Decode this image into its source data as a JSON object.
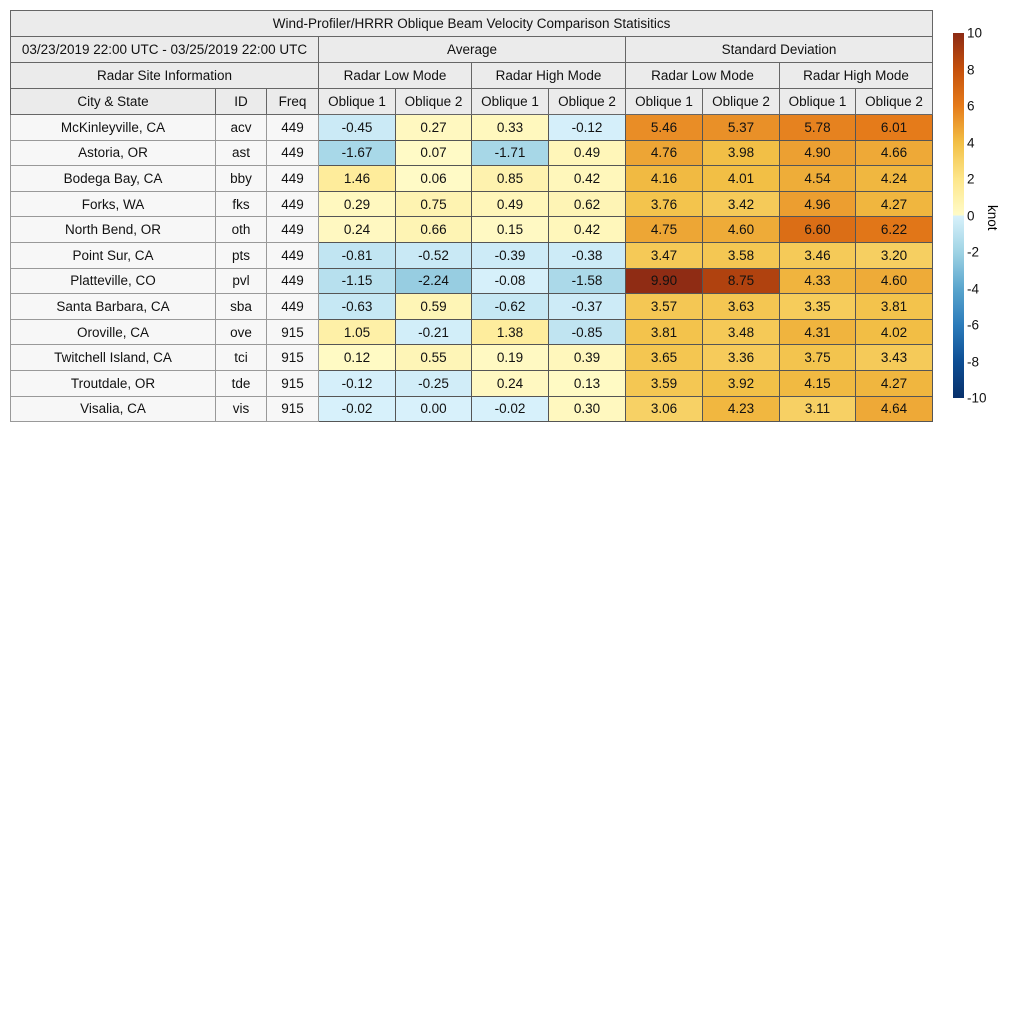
{
  "chart_data": {
    "type": "heatmap",
    "title": "Wind-Profiler/HRRR Oblique Beam Velocity Comparison Statisitics",
    "period": "03/23/2019 22:00 UTC - 03/25/2019 22:00 UTC",
    "groups": [
      "Average",
      "Standard Deviation"
    ],
    "modes": [
      "Radar Low Mode",
      "Radar High Mode",
      "Radar Low Mode",
      "Radar High Mode"
    ],
    "site_header": "Radar Site Information",
    "columns": [
      "City & State",
      "ID",
      "Freq",
      "Oblique 1",
      "Oblique 2",
      "Oblique 1",
      "Oblique 2",
      "Oblique 1",
      "Oblique 2",
      "Oblique 1",
      "Oblique 2"
    ],
    "rows": [
      {
        "city": "McKinleyville, CA",
        "id": "acv",
        "freq": "449",
        "values": [
          -0.45,
          0.27,
          0.33,
          -0.12,
          5.46,
          5.37,
          5.78,
          6.01
        ],
        "labels": [
          "-0.45",
          "0.27",
          "0.33",
          "-0.12",
          "5.46",
          "5.37",
          "5.78",
          "6.01"
        ]
      },
      {
        "city": "Astoria, OR",
        "id": "ast",
        "freq": "449",
        "values": [
          -1.67,
          0.07,
          -1.71,
          0.49,
          4.76,
          3.98,
          4.9,
          4.66
        ],
        "labels": [
          "-1.67",
          "0.07",
          "-1.71",
          "0.49",
          "4.76",
          "3.98",
          "4.90",
          "4.66"
        ]
      },
      {
        "city": "Bodega Bay, CA",
        "id": "bby",
        "freq": "449",
        "values": [
          1.46,
          0.06,
          0.85,
          0.42,
          4.16,
          4.01,
          4.54,
          4.24
        ],
        "labels": [
          "1.46",
          "0.06",
          "0.85",
          "0.42",
          "4.16",
          "4.01",
          "4.54",
          "4.24"
        ]
      },
      {
        "city": "Forks, WA",
        "id": "fks",
        "freq": "449",
        "values": [
          0.29,
          0.75,
          0.49,
          0.62,
          3.76,
          3.42,
          4.96,
          4.27
        ],
        "labels": [
          "0.29",
          "0.75",
          "0.49",
          "0.62",
          "3.76",
          "3.42",
          "4.96",
          "4.27"
        ]
      },
      {
        "city": "North Bend, OR",
        "id": "oth",
        "freq": "449",
        "values": [
          0.24,
          0.66,
          0.15,
          0.42,
          4.75,
          4.6,
          6.6,
          6.22
        ],
        "labels": [
          "0.24",
          "0.66",
          "0.15",
          "0.42",
          "4.75",
          "4.60",
          "6.60",
          "6.22"
        ]
      },
      {
        "city": "Point Sur, CA",
        "id": "pts",
        "freq": "449",
        "values": [
          -0.81,
          -0.52,
          -0.39,
          -0.38,
          3.47,
          3.58,
          3.46,
          3.2
        ],
        "labels": [
          "-0.81",
          "-0.52",
          "-0.39",
          "-0.38",
          "3.47",
          "3.58",
          "3.46",
          "3.20"
        ]
      },
      {
        "city": "Platteville, CO",
        "id": "pvl",
        "freq": "449",
        "values": [
          -1.15,
          -2.24,
          -0.08,
          -1.58,
          9.9,
          8.75,
          4.33,
          4.6
        ],
        "labels": [
          "-1.15",
          "-2.24",
          "-0.08",
          "-1.58",
          "9.90",
          "8.75",
          "4.33",
          "4.60"
        ]
      },
      {
        "city": "Santa Barbara, CA",
        "id": "sba",
        "freq": "449",
        "values": [
          -0.63,
          0.59,
          -0.62,
          -0.37,
          3.57,
          3.63,
          3.35,
          3.81
        ],
        "labels": [
          "-0.63",
          "0.59",
          "-0.62",
          "-0.37",
          "3.57",
          "3.63",
          "3.35",
          "3.81"
        ]
      },
      {
        "city": "Oroville, CA",
        "id": "ove",
        "freq": "915",
        "values": [
          1.05,
          -0.21,
          1.38,
          -0.85,
          3.81,
          3.48,
          4.31,
          4.02
        ],
        "labels": [
          "1.05",
          "-0.21",
          "1.38",
          "-0.85",
          "3.81",
          "3.48",
          "4.31",
          "4.02"
        ]
      },
      {
        "city": "Twitchell Island, CA",
        "id": "tci",
        "freq": "915",
        "values": [
          0.12,
          0.55,
          0.19,
          0.39,
          3.65,
          3.36,
          3.75,
          3.43
        ],
        "labels": [
          "0.12",
          "0.55",
          "0.19",
          "0.39",
          "3.65",
          "3.36",
          "3.75",
          "3.43"
        ]
      },
      {
        "city": "Troutdale, OR",
        "id": "tde",
        "freq": "915",
        "values": [
          -0.12,
          -0.25,
          0.24,
          0.13,
          3.59,
          3.92,
          4.15,
          4.27
        ],
        "labels": [
          "-0.12",
          "-0.25",
          "0.24",
          "0.13",
          "3.59",
          "3.92",
          "4.15",
          "4.27"
        ]
      },
      {
        "city": "Visalia, CA",
        "id": "vis",
        "freq": "915",
        "values": [
          -0.02,
          0.0,
          -0.02,
          0.3,
          3.06,
          4.23,
          3.11,
          4.64
        ],
        "labels": [
          "-0.02",
          "0.00",
          "-0.02",
          "0.30",
          "3.06",
          "4.23",
          "3.11",
          "4.64"
        ]
      }
    ],
    "colorbar": {
      "unit": "knot",
      "range": [
        -10,
        10
      ],
      "ticks": [
        "10",
        "8",
        "6",
        "4",
        "2",
        "0",
        "-2",
        "-4",
        "-6",
        "-8",
        "-10"
      ],
      "colors": {
        "-10": "#08306b",
        "-8": "#0d4e94",
        "-6": "#2b7bba",
        "-4": "#5aa5cd",
        "-2": "#9fd3e4",
        "-0": "#d8f1fb",
        "0": "#fffbc8",
        "2": "#fde68a",
        "4": "#f2bf45",
        "6": "#e57b1a",
        "8": "#c5500c",
        "10": "#8c2a14"
      }
    }
  }
}
